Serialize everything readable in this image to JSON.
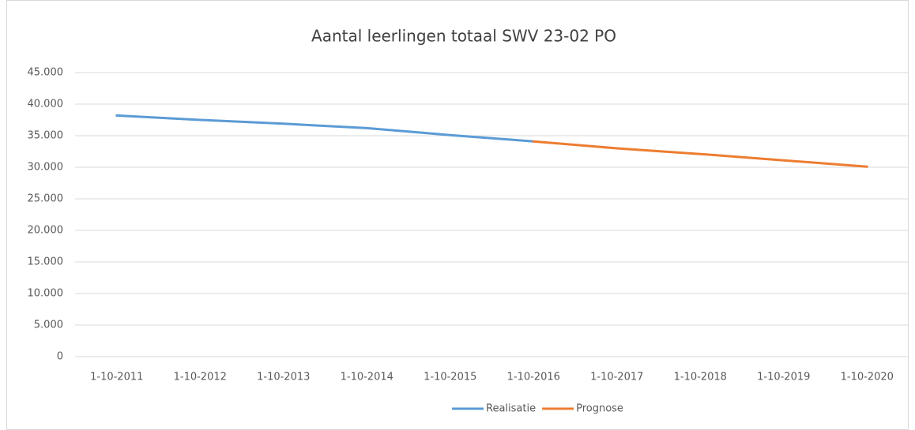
{
  "chart_data": {
    "type": "line",
    "title": "Aantal leerlingen totaal SWV 23-02 PO",
    "categories": [
      "1-10-2011",
      "1-10-2012",
      "1-10-2013",
      "1-10-2014",
      "1-10-2015",
      "1-10-2016",
      "1-10-2017",
      "1-10-2018",
      "1-10-2019",
      "1-10-2020"
    ],
    "series": [
      {
        "name": "Realisatie",
        "color": "#5b9bd5",
        "values": [
          38200,
          37500,
          36900,
          36200,
          35100,
          34100,
          null,
          null,
          null,
          null
        ]
      },
      {
        "name": "Prognose",
        "color": "#ed7d31",
        "values": [
          null,
          null,
          null,
          null,
          null,
          34100,
          33000,
          32100,
          31100,
          30100
        ]
      }
    ],
    "ylim": [
      0,
      45000
    ],
    "yticks": [
      0,
      {
        "value": 5000,
        "label": "5.000"
      },
      {
        "value": 10000,
        "label": "10.000"
      },
      {
        "value": 15000,
        "label": "15.000"
      },
      {
        "value": 20000,
        "label": "20.000"
      },
      {
        "value": 25000,
        "label": "25.000"
      },
      {
        "value": 30000,
        "label": "30.000"
      },
      {
        "value": 35000,
        "label": "35.000"
      },
      {
        "value": 40000,
        "label": "40.000"
      },
      {
        "value": 45000,
        "label": "45.000"
      }
    ],
    "grid": true,
    "legend": "bottom"
  }
}
